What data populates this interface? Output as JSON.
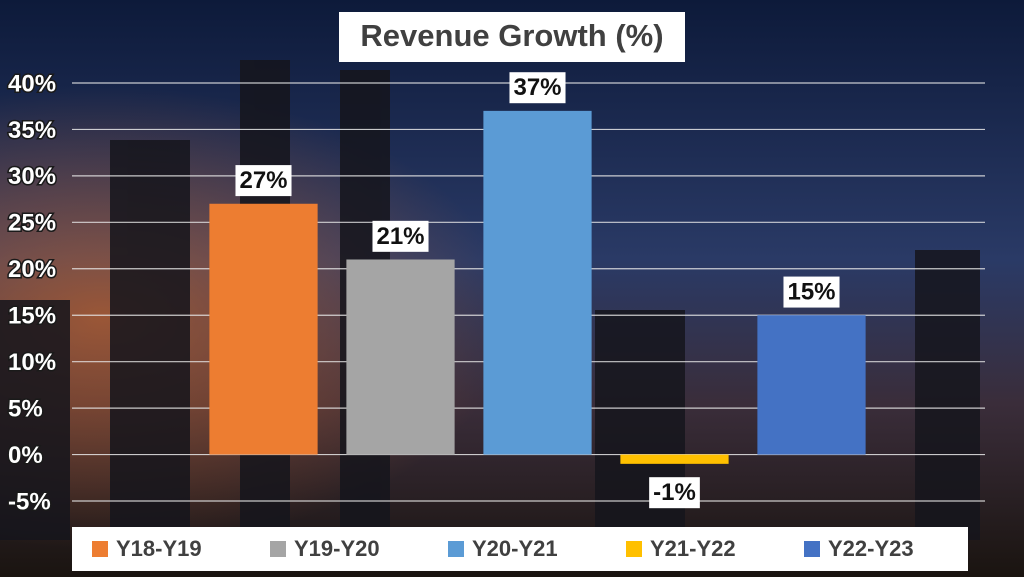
{
  "chart_data": {
    "type": "bar",
    "title": "Revenue Growth (%)",
    "categories": [
      null
    ],
    "series": [
      {
        "name": "Y18-Y19",
        "color": "#ed7d31",
        "values": [
          27
        ],
        "value_labels": [
          "27%"
        ]
      },
      {
        "name": "Y19-Y20",
        "color": "#a5a5a5",
        "values": [
          21
        ],
        "value_labels": [
          "21%"
        ]
      },
      {
        "name": "Y20-Y21",
        "color": "#5b9bd5",
        "values": [
          37
        ],
        "value_labels": [
          "37%"
        ]
      },
      {
        "name": "Y21-Y22",
        "color": "#ffc000",
        "values": [
          -1
        ],
        "value_labels": [
          "-1%"
        ]
      },
      {
        "name": "Y22-Y23",
        "color": "#4472c4",
        "values": [
          15
        ],
        "value_labels": [
          "15%"
        ]
      }
    ],
    "ylim": [
      -5,
      40
    ],
    "yticks": [
      {
        "value": -5,
        "label": "-5%"
      },
      {
        "value": 0,
        "label": "0%"
      },
      {
        "value": 5,
        "label": "5%"
      },
      {
        "value": 10,
        "label": "10%"
      },
      {
        "value": 15,
        "label": "15%"
      },
      {
        "value": 20,
        "label": "20%"
      },
      {
        "value": 25,
        "label": "25%"
      },
      {
        "value": 30,
        "label": "30%"
      },
      {
        "value": 35,
        "label": "35%"
      },
      {
        "value": 40,
        "label": "40%"
      }
    ],
    "grid": true
  }
}
